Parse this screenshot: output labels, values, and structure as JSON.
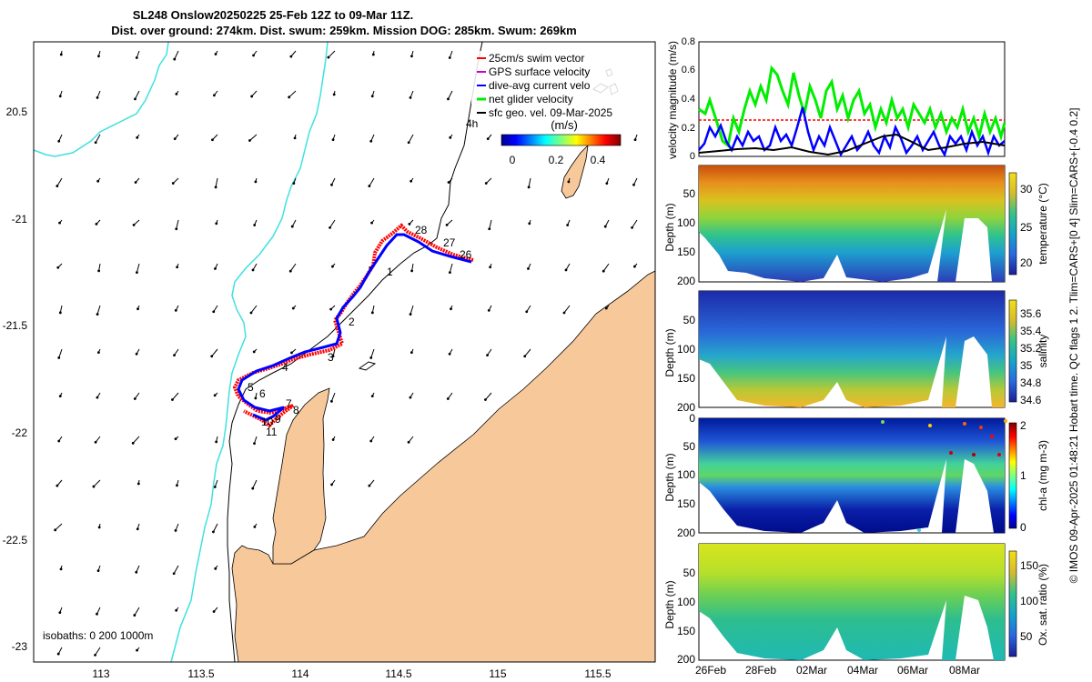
{
  "map": {
    "title_line1": "SL248 Onslow20250225 25-Feb 12Z to 09-Mar 11Z.",
    "title_line2": "Dist. over ground: 274km. Dist. swum: 259km. Mission DOG: 285km. Swum: 269km",
    "x_ticks": [
      "113",
      "113.5",
      "114",
      "114.5",
      "115",
      "115.5"
    ],
    "y_ticks": [
      "20.5",
      "-21",
      "-21.5",
      "-22",
      "-22.5",
      "-23"
    ],
    "legend": [
      {
        "label": "25cm/s swim vector",
        "color": "#ff0000"
      },
      {
        "label": "GPS surface velocity",
        "color": "#cc00cc"
      },
      {
        "label": "dive-avg current velo",
        "color": "#0000ff"
      },
      {
        "label": "net glider velocity",
        "color": "#00ee00"
      },
      {
        "label": "sfc geo. vel. 09-Mar-2025",
        "color": "#000000"
      }
    ],
    "colorbar_units": "(m/s)",
    "colorbar_ticks": [
      "0",
      "0.2",
      "0.4"
    ],
    "isobaths_label": "isobaths: 0   200  1000m",
    "time_label": "4h",
    "track_labels": [
      "28",
      "27",
      "26",
      "1",
      "2",
      "3",
      "4",
      "5",
      "6",
      "7",
      "8",
      "9",
      "10",
      "11"
    ],
    "colors": {
      "land": "#f7c89a",
      "isobath_0": "#40e0e0",
      "track_red": "#ff0000",
      "track_blue": "#0000ff"
    }
  },
  "panels": {
    "velocity": {
      "ylabel": "velocity magnitude (m/s)",
      "y_ticks": [
        "0",
        "0.2",
        "0.4",
        "0.6",
        "0.8"
      ],
      "swim_vector_ms": 0.25
    },
    "temperature": {
      "label": "temperature (°C)",
      "y_ticks": [
        "50",
        "100",
        "150",
        "200"
      ],
      "ylabel": "Depth (m)",
      "cbar_ticks": [
        "30",
        "25",
        "20"
      ]
    },
    "salinity": {
      "label": "salinity",
      "y_ticks": [
        "50",
        "100",
        "150",
        "200"
      ],
      "ylabel": "Depth (m)",
      "cbar_ticks": [
        "35.6",
        "35.4",
        "35.2",
        "35",
        "34.8",
        "34.6"
      ]
    },
    "chla": {
      "label": "chl-a (mg m-3)",
      "y_ticks": [
        "0",
        "50",
        "100",
        "150",
        "200"
      ],
      "ylabel": "Depth (m)",
      "cbar_ticks": [
        "2",
        "1",
        "0"
      ]
    },
    "oxygen": {
      "label": "Ox. sat. ratio (%)",
      "y_ticks": [
        "50",
        "100",
        "150",
        "200"
      ],
      "ylabel": "Depth (m)",
      "cbar_ticks": [
        "150",
        "100",
        "50"
      ]
    },
    "x_ticks": [
      "26Feb",
      "28Feb",
      "02Mar",
      "04Mar",
      "06Mar",
      "08Mar"
    ]
  },
  "side_note": "© IMOS 09-Apr-2025 01:48:21 Hobart time. QC flags 1  2. Tlim=CARS+[0 4] Slim=CARS+[-0.4 0.2]"
}
